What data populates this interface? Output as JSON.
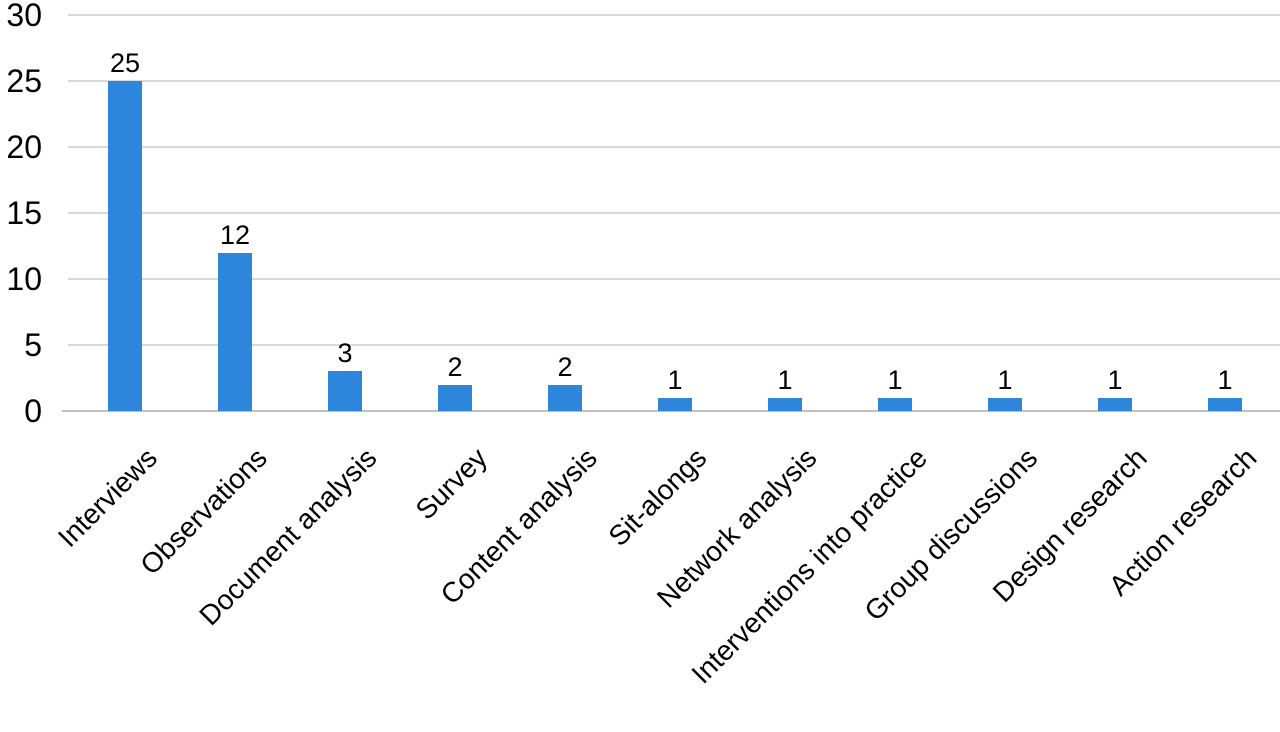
{
  "chart_data": {
    "type": "bar",
    "title": "",
    "xlabel": "",
    "ylabel": "",
    "categories": [
      "Interviews",
      "Observations",
      "Document analysis",
      "Survey",
      "Content analysis",
      "Sit-alongs",
      "Network analysis",
      "Interventions into practice",
      "Group discussions",
      "Design research",
      "Action research"
    ],
    "values": [
      25,
      12,
      3,
      2,
      2,
      1,
      1,
      1,
      1,
      1,
      1
    ],
    "yticks": [
      0,
      5,
      10,
      15,
      20,
      25,
      30
    ],
    "ylim": [
      0,
      30
    ],
    "grid": "horizontal",
    "legend_position": "none",
    "value_labels_shown": true,
    "bar_color": "#2E86DC",
    "gridline_color": "#D9D9D9",
    "axis_line_color": "#BFBFBF",
    "text_color": "#000000"
  }
}
